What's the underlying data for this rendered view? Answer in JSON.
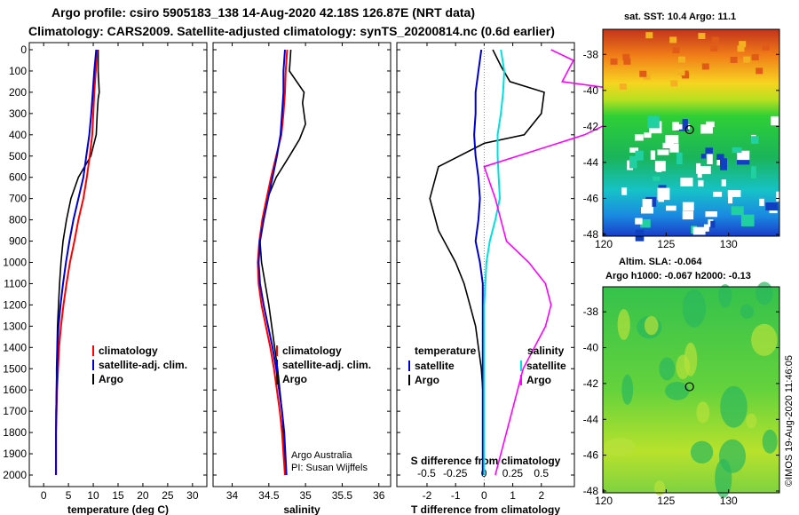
{
  "header": {
    "line1": "Argo profile: csiro 5905183_138 14-Aug-2020 42.18S 126.87E (NRT data)",
    "line2": "Climatology: CARS2009. Satellite-adjusted climatology: synTS_20200814.nc (0.6d earlier)"
  },
  "colors": {
    "argo": "#000000",
    "climatology": "#ff0000",
    "satellite": "#0000cc",
    "salinity_sat": "#00e0e0",
    "salinity_argo": "#ff00ff"
  },
  "chart_data": [
    {
      "type": "line",
      "name": "temperature",
      "xlabel": "temperature (deg C)",
      "xlim": [
        -2,
        32
      ],
      "xticks": [
        "0",
        "5",
        "10",
        "15",
        "20",
        "25",
        "30"
      ],
      "xtick_values": [
        0,
        5,
        10,
        15,
        20,
        25,
        30
      ],
      "ylim": [
        0,
        2060
      ],
      "yticks": [
        "0",
        "100",
        "200",
        "300",
        "400",
        "500",
        "600",
        "700",
        "800",
        "900",
        "1000",
        "1100",
        "1200",
        "1300",
        "1400",
        "1500",
        "1600",
        "1700",
        "1800",
        "1900",
        "2000"
      ],
      "ytick_values": [
        0,
        100,
        200,
        300,
        400,
        500,
        600,
        700,
        800,
        900,
        1000,
        1100,
        1200,
        1300,
        1400,
        1500,
        1600,
        1700,
        1800,
        1900,
        2000
      ],
      "legend": {
        "position": "lower-right",
        "entries": [
          "climatology",
          "satellite-adj. clim.",
          "Argo"
        ]
      },
      "series": [
        {
          "name": "Argo",
          "x": [
            11.0,
            11.0,
            11.2,
            11.0,
            10.8,
            10.6,
            9.5,
            7.0,
            5.5,
            4.6,
            3.9,
            3.5,
            3.2,
            3.0,
            2.8,
            2.7,
            2.6,
            2.6,
            2.5,
            2.5,
            2.5
          ],
          "y": [
            0,
            100,
            200,
            230,
            300,
            400,
            500,
            600,
            700,
            800,
            900,
            1000,
            1100,
            1200,
            1300,
            1400,
            1500,
            1600,
            1700,
            1800,
            2000
          ]
        },
        {
          "name": "climatology",
          "x": [
            10.8,
            10.5,
            10.2,
            10.0,
            9.8,
            9.3,
            8.7,
            8.0,
            7.0,
            6.2,
            5.3,
            4.6,
            4.0,
            3.5,
            3.1,
            2.9,
            2.7,
            2.6,
            2.5,
            2.5
          ],
          "y": [
            0,
            100,
            200,
            300,
            400,
            500,
            600,
            700,
            800,
            900,
            1000,
            1100,
            1200,
            1300,
            1400,
            1500,
            1600,
            1700,
            1800,
            2000
          ]
        },
        {
          "name": "satellite-adj. clim.",
          "x": [
            10.6,
            10.2,
            9.9,
            9.6,
            9.2,
            8.6,
            8.0,
            7.0,
            6.0,
            5.2,
            4.5,
            3.9,
            3.4,
            3.0,
            2.8,
            2.6,
            2.5,
            2.5
          ],
          "y": [
            0,
            100,
            200,
            300,
            400,
            500,
            600,
            700,
            800,
            900,
            1000,
            1100,
            1200,
            1300,
            1400,
            1600,
            1800,
            2000
          ]
        }
      ]
    },
    {
      "type": "line",
      "name": "salinity",
      "xlabel": "salinity",
      "xlim": [
        33.8,
        36.1
      ],
      "xticks": [
        "34",
        "34.5",
        "35",
        "35.5",
        "36"
      ],
      "xtick_values": [
        34,
        34.5,
        35,
        35.5,
        36
      ],
      "ylim": [
        0,
        2060
      ],
      "legend": {
        "position": "lower-right",
        "entries": [
          "climatology",
          "satellite-adj. clim.",
          "Argo"
        ]
      },
      "annotation": [
        "Argo Australia",
        "PI: Susan Wijffels"
      ],
      "series": [
        {
          "name": "Argo",
          "x": [
            34.8,
            34.78,
            34.98,
            34.96,
            35.0,
            34.92,
            34.78,
            34.6,
            34.48,
            34.41,
            34.38,
            34.4,
            34.45,
            34.5,
            34.54,
            34.58,
            34.62,
            34.65,
            34.68,
            34.7,
            34.73
          ],
          "y": [
            0,
            100,
            200,
            250,
            350,
            420,
            500,
            600,
            700,
            800,
            900,
            1000,
            1100,
            1200,
            1300,
            1400,
            1500,
            1600,
            1700,
            1800,
            2000
          ]
        },
        {
          "name": "climatology",
          "x": [
            34.75,
            34.73,
            34.72,
            34.7,
            34.67,
            34.6,
            34.53,
            34.47,
            34.41,
            34.37,
            34.35,
            34.36,
            34.4,
            34.46,
            34.52,
            34.57,
            34.61,
            34.65,
            34.68,
            34.7,
            34.72
          ],
          "y": [
            0,
            100,
            200,
            300,
            400,
            500,
            600,
            700,
            800,
            900,
            1000,
            1100,
            1200,
            1300,
            1400,
            1500,
            1600,
            1700,
            1800,
            1900,
            2000
          ]
        },
        {
          "name": "satellite-adj. clim.",
          "x": [
            34.72,
            34.7,
            34.7,
            34.68,
            34.66,
            34.61,
            34.55,
            34.49,
            34.43,
            34.38,
            34.36,
            34.38,
            34.43,
            34.49,
            34.55,
            34.6,
            34.64,
            34.68,
            34.71,
            34.74
          ],
          "y": [
            0,
            100,
            200,
            300,
            400,
            500,
            600,
            700,
            800,
            900,
            1000,
            1100,
            1200,
            1300,
            1400,
            1500,
            1600,
            1700,
            1800,
            2000
          ]
        }
      ]
    },
    {
      "type": "line",
      "name": "differences",
      "xlabel": "T difference from climatology",
      "xlabel2": "S difference from climatology",
      "xlim": [
        -2.9,
        3.0
      ],
      "xticks": [
        "-2",
        "-1",
        "0",
        "1",
        "2"
      ],
      "xtick_values": [
        -2,
        -1,
        0,
        1,
        2
      ],
      "xticks_s": [
        "-0.5",
        "-0.25",
        "0",
        "0.25",
        "0.5"
      ],
      "xtick_values_s": [
        -0.5,
        -0.25,
        0,
        0.25,
        0.5
      ],
      "ylim": [
        0,
        2060
      ],
      "legend": {
        "position": "lower-right",
        "temperature_header": "temperature",
        "salinity_header": "salinity",
        "temperature_entries": [
          "satellite",
          "Argo"
        ],
        "salinity_entries": [
          "satellite",
          "Argo"
        ]
      },
      "series": [
        {
          "name": "Argo (T)",
          "x": [
            0.3,
            0.6,
            0.9,
            2.1,
            2.0,
            1.4,
            0.0,
            -1.6,
            -1.9,
            -1.6,
            -1.0,
            -0.7,
            -0.5,
            -0.3,
            -0.2,
            -0.1,
            -0.05,
            -0.05,
            -0.05,
            -0.05
          ],
          "y": [
            0,
            80,
            150,
            200,
            300,
            400,
            440,
            550,
            700,
            850,
            1000,
            1100,
            1200,
            1300,
            1400,
            1500,
            1600,
            1700,
            1800,
            2000
          ]
        },
        {
          "name": "satellite (T)",
          "x": [
            -0.1,
            -0.2,
            -0.3,
            -0.3,
            -0.35,
            -0.3,
            -0.2,
            -0.15,
            -0.2,
            -0.3,
            -0.15,
            -0.05,
            -0.05,
            -0.05,
            -0.05,
            -0.05
          ],
          "y": [
            0,
            100,
            200,
            300,
            400,
            500,
            600,
            700,
            800,
            900,
            1000,
            1100,
            1200,
            1400,
            1700,
            2000
          ]
        },
        {
          "name": "satellite (S)",
          "x": [
            0.15,
            0.18,
            0.17,
            0.15,
            0.12,
            0.12,
            0.13,
            0.14,
            0.1,
            0.05,
            0.02,
            0.0,
            0.0,
            0.0
          ],
          "y": [
            0,
            100,
            200,
            300,
            400,
            500,
            600,
            700,
            800,
            900,
            1000,
            1200,
            1500,
            2000
          ]
        },
        {
          "name": "Argo (S)",
          "x": [
            0.6,
            0.8,
            0.7,
            1.4,
            1.3,
            0.9,
            0.3,
            0.0,
            0.1,
            0.2,
            0.4,
            0.55,
            0.6,
            0.55,
            0.35,
            0.25,
            0.2,
            0.15,
            0.1
          ],
          "y": [
            0,
            50,
            150,
            200,
            300,
            400,
            500,
            550,
            700,
            900,
            1000,
            1100,
            1200,
            1300,
            1500,
            1700,
            1800,
            1900,
            2000
          ]
        }
      ]
    },
    {
      "type": "heatmap",
      "name": "sst-map",
      "title": "sat. SST: 10.4 Argo: 11.1",
      "xticks": [
        "120",
        "125",
        "130"
      ],
      "yticks": [
        "-38",
        "-40",
        "-42",
        "-44",
        "-46",
        "-48"
      ],
      "marker": {
        "lon": 126.87,
        "lat": -42.18
      }
    },
    {
      "type": "heatmap",
      "name": "sla-map",
      "title": "Altim. SLA: -0.064",
      "subtitle": "Argo h1000: -0.067 h2000: -0.13",
      "xticks": [
        "120",
        "125",
        "130"
      ],
      "yticks": [
        "-38",
        "-40",
        "-42",
        "-44",
        "-46",
        "-48"
      ],
      "marker": {
        "lon": 126.87,
        "lat": -42.18
      }
    }
  ],
  "credit": "©IMOS 19-Aug-2020 11:46:05"
}
